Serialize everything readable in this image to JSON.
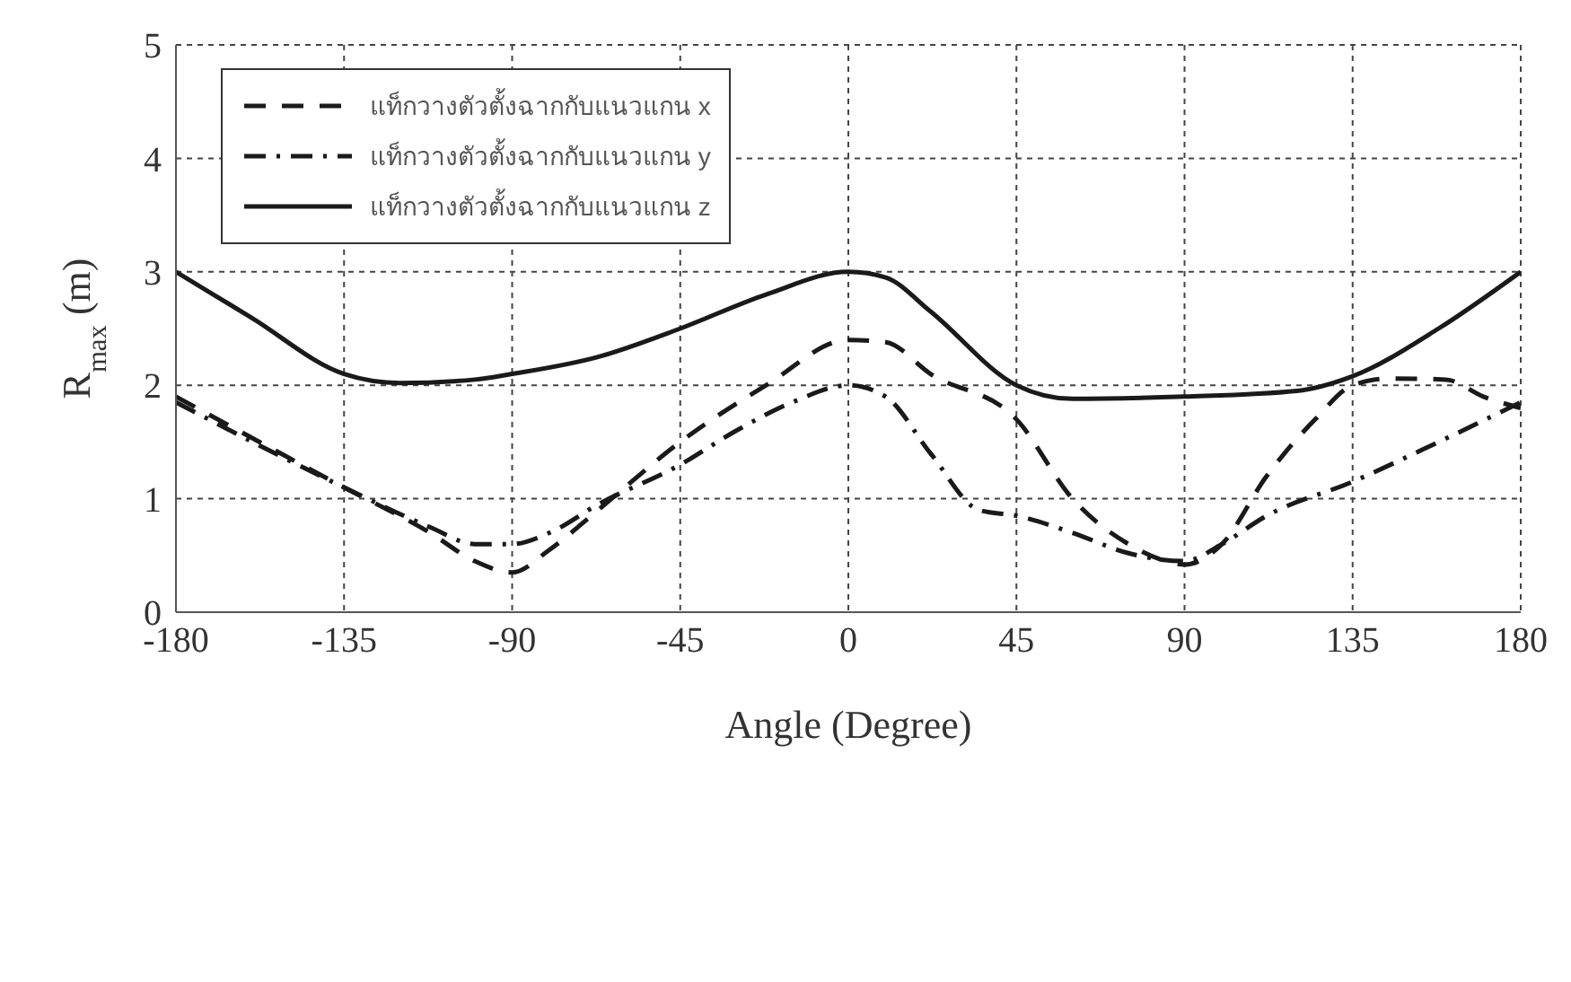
{
  "chart_data": {
    "type": "line",
    "xlabel": "Angle (Degree)",
    "ylabel": "R$_{max}$ (m)",
    "xlim": [
      -180,
      180
    ],
    "xticks": [
      -180,
      -135,
      -90,
      -45,
      0,
      45,
      90,
      135,
      180
    ],
    "ylim": [
      0,
      5
    ],
    "yticks": [
      0,
      1,
      2,
      3,
      4,
      5
    ],
    "grid": true,
    "legend": "top left",
    "marker": "none",
    "series": [
      {
        "name": "แท็กวางตัวตั้งฉากกับแนวแกน x",
        "color": "#1a1a1a",
        "line_style": "dashed",
        "x": [
          -180,
          -135,
          -112,
          -100,
          -90,
          -80,
          -67,
          -45,
          -22,
          0,
          10,
          22,
          45,
          60,
          75,
          85,
          90,
          100,
          112,
          125,
          135,
          145,
          160,
          170,
          180
        ],
        "values": [
          1.9,
          1.1,
          0.7,
          0.45,
          0.35,
          0.55,
          0.9,
          1.5,
          2.0,
          2.4,
          2.38,
          2.1,
          1.7,
          1.0,
          0.6,
          0.45,
          0.42,
          0.6,
          1.2,
          1.7,
          2.0,
          2.06,
          2.05,
          1.9,
          1.8
        ]
      },
      {
        "name": "แท็กวางตัวตั้งฉากกับแนวแกน y",
        "color": "#1a1a1a",
        "line_style": "dashdot",
        "x": [
          -180,
          -135,
          -112,
          -100,
          -90,
          -80,
          -67,
          -45,
          -30,
          -15,
          0,
          10,
          22,
          35,
          45,
          60,
          75,
          90,
          100,
          112,
          135,
          158,
          180
        ],
        "values": [
          1.85,
          1.1,
          0.75,
          0.6,
          0.6,
          0.7,
          0.95,
          1.3,
          1.6,
          1.85,
          2.0,
          1.9,
          1.4,
          0.9,
          0.85,
          0.7,
          0.52,
          0.45,
          0.6,
          0.85,
          1.15,
          1.5,
          1.85
        ]
      },
      {
        "name": "แท็กวางตัวตั้งฉากกับแนวแกน z",
        "color": "#1a1a1a",
        "line_style": "solid",
        "x": [
          -180,
          -160,
          -135,
          -120,
          -100,
          -90,
          -67,
          -45,
          -22,
          0,
          10,
          22,
          45,
          60,
          90,
          120,
          135,
          158,
          180
        ],
        "values": [
          3.0,
          2.6,
          2.1,
          2.02,
          2.05,
          2.1,
          2.25,
          2.5,
          2.8,
          3.0,
          2.95,
          2.65,
          2.0,
          1.88,
          1.9,
          1.95,
          2.08,
          2.5,
          3.0
        ]
      }
    ]
  }
}
